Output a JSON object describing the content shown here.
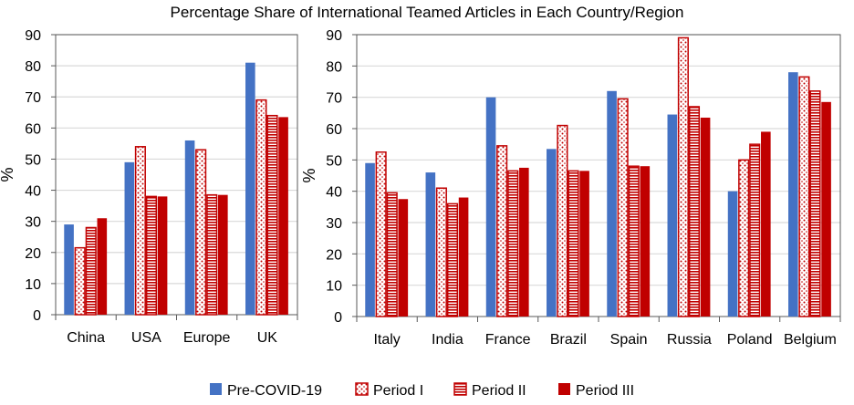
{
  "chart_data": {
    "title": "Percentage Share of International Teamed Articles in Each Country/Region",
    "type": "bar",
    "legend": {
      "placement": "bottom"
    },
    "series_meta": [
      {
        "name": "Pre-COVID-19",
        "color": "#4472C4",
        "pattern": "solid"
      },
      {
        "name": "Period I",
        "color": "#C00000",
        "pattern": "dots"
      },
      {
        "name": "Period II",
        "color": "#C00000",
        "pattern": "horizontal-lines"
      },
      {
        "name": "Period III",
        "color": "#C00000",
        "pattern": "solid"
      }
    ],
    "panels": [
      {
        "ylabel": "%",
        "ylim": [
          0,
          90
        ],
        "yticks": [
          0,
          10,
          20,
          30,
          40,
          50,
          60,
          70,
          80,
          90
        ],
        "grid": true,
        "categories": [
          "China",
          "USA",
          "Europe",
          "UK"
        ],
        "series": [
          {
            "name": "Pre-COVID-19",
            "values": [
              29,
              49,
              56,
              81
            ]
          },
          {
            "name": "Period I",
            "values": [
              21.5,
              54,
              53,
              69
            ]
          },
          {
            "name": "Period II",
            "values": [
              28,
              38,
              38.5,
              64
            ]
          },
          {
            "name": "Period III",
            "values": [
              31,
              38,
              38.5,
              63.5
            ]
          }
        ]
      },
      {
        "ylabel": "%",
        "ylim": [
          0,
          90
        ],
        "yticks": [
          0,
          10,
          20,
          30,
          40,
          50,
          60,
          70,
          80,
          90
        ],
        "grid": true,
        "categories": [
          "Italy",
          "India",
          "France",
          "Brazil",
          "Spain",
          "Russia",
          "Poland",
          "Belgium"
        ],
        "series": [
          {
            "name": "Pre-COVID-19",
            "values": [
              49,
              46,
              70,
              53.5,
              72,
              64.5,
              40,
              78
            ]
          },
          {
            "name": "Period I",
            "values": [
              52.5,
              41,
              54.5,
              61,
              69.5,
              89,
              50,
              76.5
            ]
          },
          {
            "name": "Period II",
            "values": [
              39.5,
              36,
              46.5,
              46.5,
              48,
              67,
              55,
              72
            ]
          },
          {
            "name": "Period III",
            "values": [
              37.5,
              38,
              47.5,
              46.5,
              48,
              63.5,
              59,
              68.5
            ]
          }
        ]
      }
    ]
  }
}
